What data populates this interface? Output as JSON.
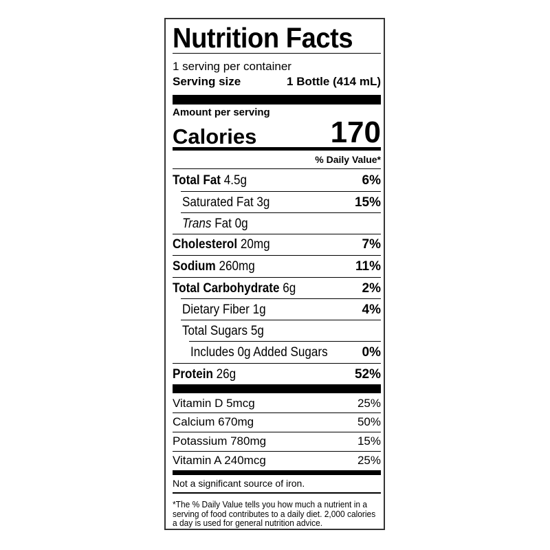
{
  "title": "Nutrition Facts",
  "servings_per_container": "1 serving per container",
  "serving_size": {
    "label": "Serving size",
    "value": "1 Bottle (414 mL)"
  },
  "amount_per_serving": "Amount per serving",
  "calories": {
    "label": "Calories",
    "value": "170"
  },
  "daily_value_header": "% Daily Value*",
  "nutrients": [
    {
      "name": "Total Fat",
      "amount": "4.5g",
      "dv": "6%"
    },
    {
      "name": "Saturated Fat",
      "amount": "3g",
      "dv": "15%"
    },
    {
      "name": "Trans",
      "name_suffix": "Fat",
      "amount": "0g",
      "dv": ""
    },
    {
      "name": "Cholesterol",
      "amount": "20mg",
      "dv": "7%"
    },
    {
      "name": "Sodium",
      "amount": "260mg",
      "dv": "11%"
    },
    {
      "name": "Total Carbohydrate",
      "amount": "6g",
      "dv": "2%"
    },
    {
      "name": "Dietary Fiber",
      "amount": "1g",
      "dv": "4%"
    },
    {
      "name": "Total Sugars",
      "amount": "5g",
      "dv": ""
    },
    {
      "name": "Includes 0g Added Sugars",
      "amount": "",
      "dv": "0%"
    },
    {
      "name": "Protein",
      "amount": "26g",
      "dv": "52%"
    }
  ],
  "vitamins": [
    {
      "name": "Vitamin D 5mcg",
      "dv": "25%"
    },
    {
      "name": "Calcium 670mg",
      "dv": "50%"
    },
    {
      "name": "Potassium 780mg",
      "dv": "15%"
    },
    {
      "name": "Vitamin A 240mcg",
      "dv": "25%"
    }
  ],
  "not_significant": "Not a significant source of iron.",
  "footnote": "*The % Daily Value tells you how much a nutrient in a serving of food contributes to a daily diet. 2,000 calories a day is used for general nutrition advice."
}
